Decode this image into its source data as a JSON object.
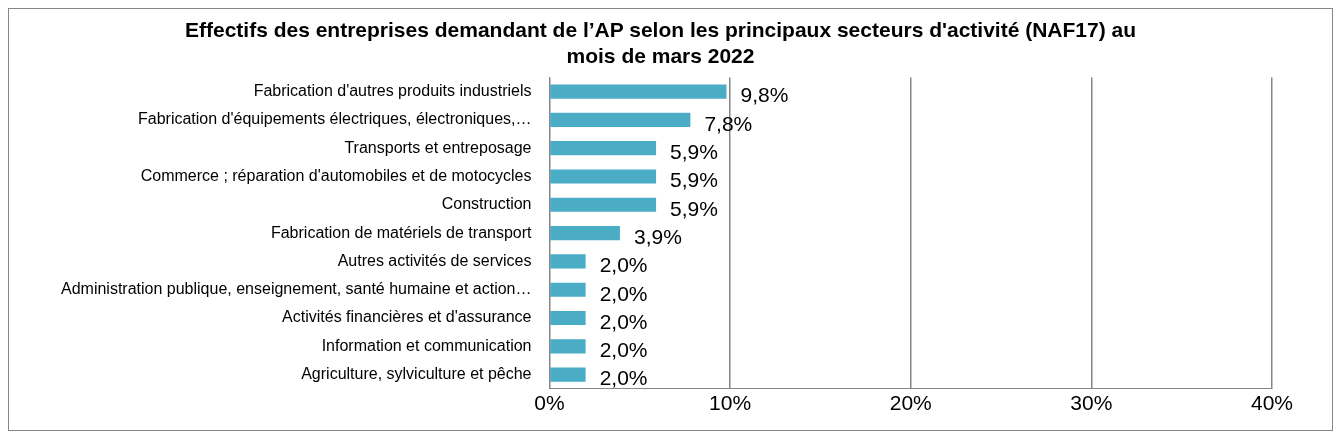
{
  "chart_data": {
    "type": "bar",
    "orientation": "horizontal",
    "title": "Effectifs des entreprises demandant de l’AP selon les principaux secteurs d'activité (NAF17) au mois de mars 2022",
    "categories": [
      "Fabrication d'autres produits industriels",
      "Fabrication d'équipements électriques, électroniques,…",
      "Transports et entreposage",
      "Commerce ; réparation d'automobiles et de motocycles",
      "Construction",
      "Fabrication de matériels de transport",
      "Autres activités de services",
      "Administration publique, enseignement, santé humaine et action…",
      "Activités financières et d'assurance",
      "Information et communication",
      "Agriculture, sylviculture et pêche"
    ],
    "values": [
      9.8,
      7.8,
      5.9,
      5.9,
      5.9,
      3.9,
      2.0,
      2.0,
      2.0,
      2.0,
      2.0
    ],
    "value_labels": [
      "9,8%",
      "7,8%",
      "5,9%",
      "5,9%",
      "5,9%",
      "3,9%",
      "2,0%",
      "2,0%",
      "2,0%",
      "2,0%",
      "2,0%"
    ],
    "color": "#4bacc6",
    "xlim": [
      0,
      40
    ],
    "xticks": [
      {
        "value": 0,
        "label": "0%"
      },
      {
        "value": 10,
        "label": "10%"
      },
      {
        "value": 20,
        "label": "20%"
      },
      {
        "value": 30,
        "label": "30%"
      },
      {
        "value": 40,
        "label": "40%"
      }
    ],
    "grid": "x",
    "legend": false
  }
}
